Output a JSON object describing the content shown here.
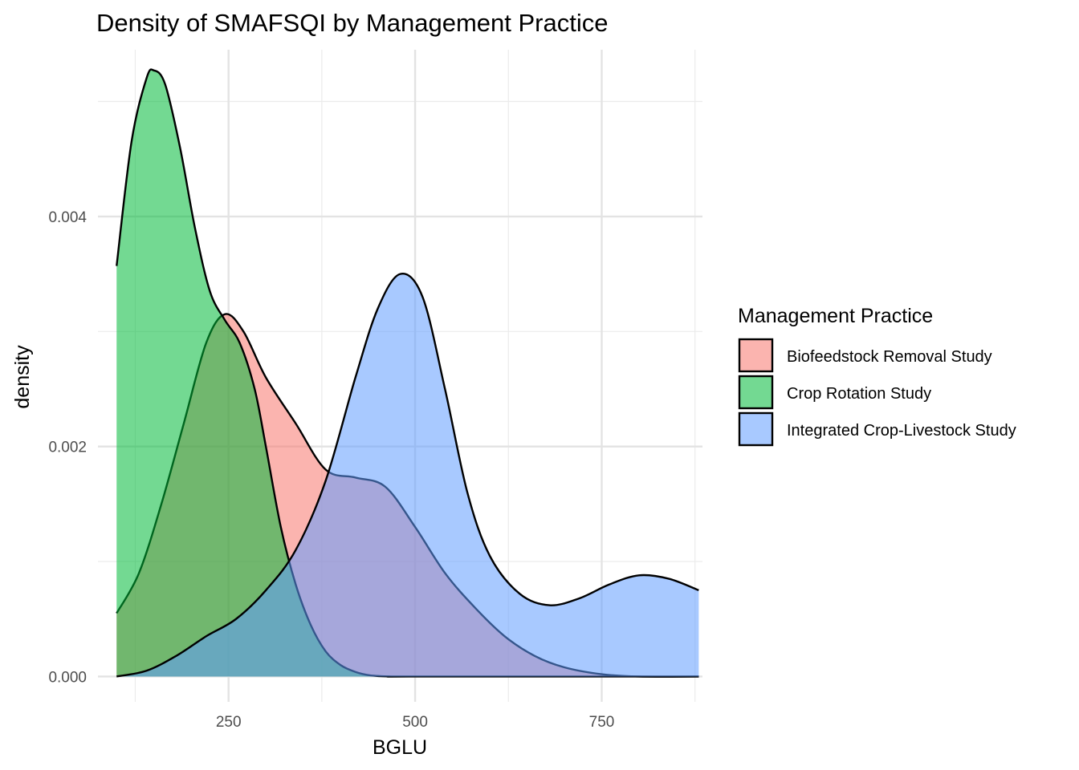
{
  "chart_data": {
    "type": "area",
    "title": "Density of SMAFSQI by Management Practice",
    "xlabel": "BGLU",
    "ylabel": "density",
    "xlim": [
      75,
      885
    ],
    "ylim": [
      -0.00022,
      0.00545
    ],
    "x_ticks": [
      {
        "value": 250,
        "label": "250"
      },
      {
        "value": 500,
        "label": "500"
      },
      {
        "value": 750,
        "label": "750"
      }
    ],
    "x_minor_ticks": [
      125,
      375,
      625,
      875
    ],
    "y_ticks": [
      {
        "value": 0.0,
        "label": "0.000"
      },
      {
        "value": 0.002,
        "label": "0.002"
      },
      {
        "value": 0.004,
        "label": "0.004"
      }
    ],
    "y_minor_ticks": [
      0.001,
      0.003,
      0.005
    ],
    "grid": true,
    "legend_title": "Management Practice",
    "legend_position": "right",
    "series": [
      {
        "name": "Biofeedstock Removal Study",
        "color": "#F8766D",
        "x": [
          100,
          130,
          160,
          190,
          220,
          245,
          270,
          300,
          340,
          380,
          420,
          460,
          500,
          540,
          580,
          620,
          660,
          700,
          750,
          800,
          880
        ],
        "y": [
          0.00055,
          0.0009,
          0.0015,
          0.0022,
          0.0029,
          0.00315,
          0.003,
          0.0026,
          0.0022,
          0.0018,
          0.00173,
          0.00165,
          0.0013,
          0.0009,
          0.0006,
          0.00035,
          0.00018,
          8e-05,
          2e-05,
          0.0,
          0.0
        ]
      },
      {
        "name": "Crop Rotation Study",
        "color": "#00BA38",
        "x": [
          100,
          120,
          140,
          150,
          165,
          185,
          205,
          225,
          245,
          265,
          285,
          300,
          320,
          340,
          360,
          380,
          400,
          420,
          440,
          470,
          500,
          880
        ],
        "y": [
          0.00357,
          0.00465,
          0.0052,
          0.00527,
          0.00515,
          0.0046,
          0.0039,
          0.00335,
          0.0031,
          0.0029,
          0.0025,
          0.002,
          0.0013,
          0.0008,
          0.00045,
          0.00022,
          0.0001,
          4e-05,
          1e-05,
          0.0,
          0.0,
          0.0
        ]
      },
      {
        "name": "Integrated Crop-Livestock Study",
        "color": "#619CFF",
        "x": [
          100,
          140,
          180,
          220,
          260,
          300,
          340,
          380,
          420,
          450,
          480,
          510,
          540,
          570,
          600,
          640,
          680,
          720,
          760,
          800,
          840,
          880
        ],
        "y": [
          0.0,
          5e-05,
          0.00018,
          0.00035,
          0.0005,
          0.00075,
          0.0011,
          0.0017,
          0.0026,
          0.0032,
          0.0035,
          0.0033,
          0.0025,
          0.0016,
          0.00105,
          0.00072,
          0.00062,
          0.00068,
          0.0008,
          0.00088,
          0.00085,
          0.00075
        ]
      }
    ]
  }
}
